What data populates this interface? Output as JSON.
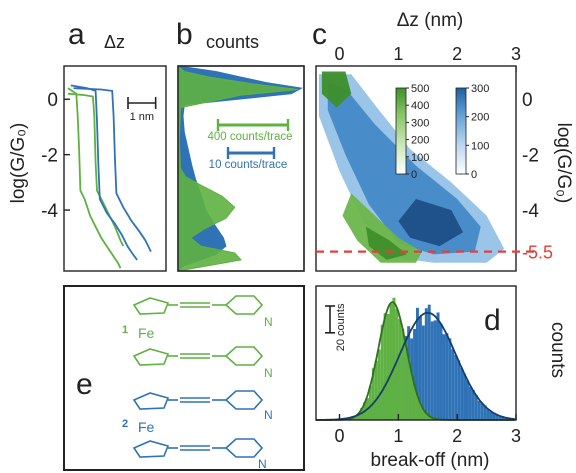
{
  "colors": {
    "green": "#5fb142",
    "blue": "#2f73b6",
    "red": "#e0413a",
    "dark": "#222222"
  },
  "chart_data": [
    {
      "panel": "a",
      "panel_label": "a",
      "type": "line",
      "header": "Δz",
      "ylabel": "log(G/G₀)",
      "yticks": [
        0,
        -2,
        -4
      ],
      "ylim": [
        -6.2,
        1.2
      ],
      "scalebar_label": "1 nm",
      "scalebar_nm": 1,
      "series": [
        {
          "color": "green",
          "points": [
            [
              0,
              0.4
            ],
            [
              0.15,
              0.3
            ],
            [
              0.3,
              0.2
            ],
            [
              0.35,
              -0.6
            ],
            [
              0.4,
              -1.8
            ],
            [
              0.45,
              -3.3
            ],
            [
              0.6,
              -3.6
            ],
            [
              0.8,
              -4.2
            ],
            [
              1.0,
              -4.6
            ],
            [
              1.2,
              -5.0
            ],
            [
              1.4,
              -5.3
            ],
            [
              1.6,
              -5.6
            ],
            [
              1.8,
              -5.9
            ],
            [
              1.9,
              -6.1
            ]
          ]
        },
        {
          "color": "green",
          "points": [
            [
              0,
              0.2
            ],
            [
              0.6,
              0.15
            ],
            [
              0.9,
              0.1
            ],
            [
              0.95,
              -0.6
            ],
            [
              1.0,
              -2.3
            ],
            [
              1.05,
              -3.3
            ],
            [
              1.25,
              -3.7
            ],
            [
              1.5,
              -4.2
            ],
            [
              1.7,
              -4.6
            ],
            [
              1.9,
              -5.1
            ],
            [
              2.0,
              -5.3
            ]
          ]
        },
        {
          "color": "blue",
          "points": [
            [
              0.1,
              0.5
            ],
            [
              0.7,
              0.4
            ],
            [
              1.0,
              0.3
            ],
            [
              1.05,
              -0.8
            ],
            [
              1.1,
              -2.4
            ],
            [
              1.15,
              -3.6
            ],
            [
              1.4,
              -4.1
            ],
            [
              1.7,
              -4.5
            ],
            [
              1.95,
              -4.9
            ],
            [
              2.15,
              -5.3
            ],
            [
              2.35,
              -5.6
            ],
            [
              2.5,
              -5.8
            ]
          ]
        },
        {
          "color": "blue",
          "points": [
            [
              0.2,
              0.4
            ],
            [
              1.2,
              0.35
            ],
            [
              1.6,
              0.3
            ],
            [
              1.65,
              -0.6
            ],
            [
              1.7,
              -2.2
            ],
            [
              1.75,
              -3.4
            ],
            [
              2.0,
              -3.9
            ],
            [
              2.3,
              -4.4
            ],
            [
              2.6,
              -4.8
            ],
            [
              2.8,
              -5.1
            ],
            [
              3.0,
              -5.5
            ]
          ]
        }
      ]
    },
    {
      "panel": "b",
      "panel_label": "b",
      "type": "area",
      "header": "counts",
      "ylim": [
        -6.2,
        1.2
      ],
      "legend": [
        {
          "label": "400 counts/trace",
          "color": "green"
        },
        {
          "label": "10 counts/trace",
          "color": "blue"
        }
      ],
      "series": [
        {
          "color": "blue",
          "points": [
            [
              -6.2,
              0
            ],
            [
              -6.0,
              0.05
            ],
            [
              -5.8,
              0.18
            ],
            [
              -5.6,
              0.3
            ],
            [
              -5.3,
              0.38
            ],
            [
              -5.0,
              0.36
            ],
            [
              -4.6,
              0.3
            ],
            [
              -4.0,
              0.22
            ],
            [
              -3.4,
              0.18
            ],
            [
              -2.9,
              0.14
            ],
            [
              -2.4,
              0.11
            ],
            [
              -1.8,
              0.08
            ],
            [
              -1.2,
              0.05
            ],
            [
              -0.6,
              0.04
            ],
            [
              -0.2,
              0.05
            ],
            [
              0.2,
              0.9
            ],
            [
              0.4,
              0.98
            ],
            [
              0.6,
              0.7
            ],
            [
              0.8,
              0.5
            ],
            [
              1.0,
              0.3
            ],
            [
              1.2,
              0
            ]
          ]
        },
        {
          "color": "green",
          "points": [
            [
              -6.2,
              0
            ],
            [
              -6.0,
              0.25
            ],
            [
              -5.8,
              0.5
            ],
            [
              -5.55,
              0.45
            ],
            [
              -5.3,
              0.18
            ],
            [
              -5.0,
              0.1
            ],
            [
              -4.7,
              0.2
            ],
            [
              -4.3,
              0.38
            ],
            [
              -3.9,
              0.45
            ],
            [
              -3.5,
              0.35
            ],
            [
              -3.1,
              0.18
            ],
            [
              -2.8,
              0.06
            ],
            [
              -2.5,
              0.02
            ],
            [
              -1.5,
              0.01
            ],
            [
              -0.3,
              0.02
            ],
            [
              0.15,
              0.5
            ],
            [
              0.35,
              0.95
            ],
            [
              0.55,
              0.6
            ],
            [
              0.8,
              0.25
            ],
            [
              1.0,
              0.05
            ],
            [
              1.2,
              0
            ]
          ]
        }
      ]
    },
    {
      "panel": "c",
      "panel_label": "c",
      "type": "heatmap",
      "xlabel": "Δz (nm)",
      "ylabel": "log(G/G₀)",
      "xticks": [
        0,
        1,
        2,
        3
      ],
      "yticks": [
        0,
        -2,
        -4
      ],
      "xlim": [
        -0.4,
        3.0
      ],
      "ylim": [
        -6.2,
        1.2
      ],
      "cutoff_value": -5.5,
      "cutoff_label": "-5.5",
      "colorbars": [
        {
          "color": "green",
          "ticks": [
            "500",
            "400",
            "300",
            "200",
            "100",
            "0"
          ]
        },
        {
          "color": "blue",
          "ticks": [
            "300",
            "200",
            "100",
            "0"
          ]
        }
      ]
    },
    {
      "panel": "d",
      "panel_label": "d",
      "type": "bar",
      "xlabel": "break-off (nm)",
      "ylabel": "counts",
      "xticks": [
        0,
        1,
        2,
        3
      ],
      "xlim": [
        -0.4,
        3.0
      ],
      "scalebar_label": "20 counts",
      "scalebar_counts": 20,
      "series": [
        {
          "color": "green",
          "fit": {
            "mean": 0.9,
            "sigma": 0.24,
            "amplitude": 88
          }
        },
        {
          "color": "blue",
          "fit": {
            "mean": 1.5,
            "sigma": 0.48,
            "amplitude": 80
          }
        }
      ]
    }
  ],
  "panel_e": {
    "panel_label": "e",
    "molecules": [
      {
        "number": "1",
        "atom": "Fe",
        "nitrogen": "N",
        "color": "green"
      },
      {
        "number": "2",
        "atom": "Fe",
        "nitrogen": "N",
        "color": "blue"
      }
    ]
  }
}
